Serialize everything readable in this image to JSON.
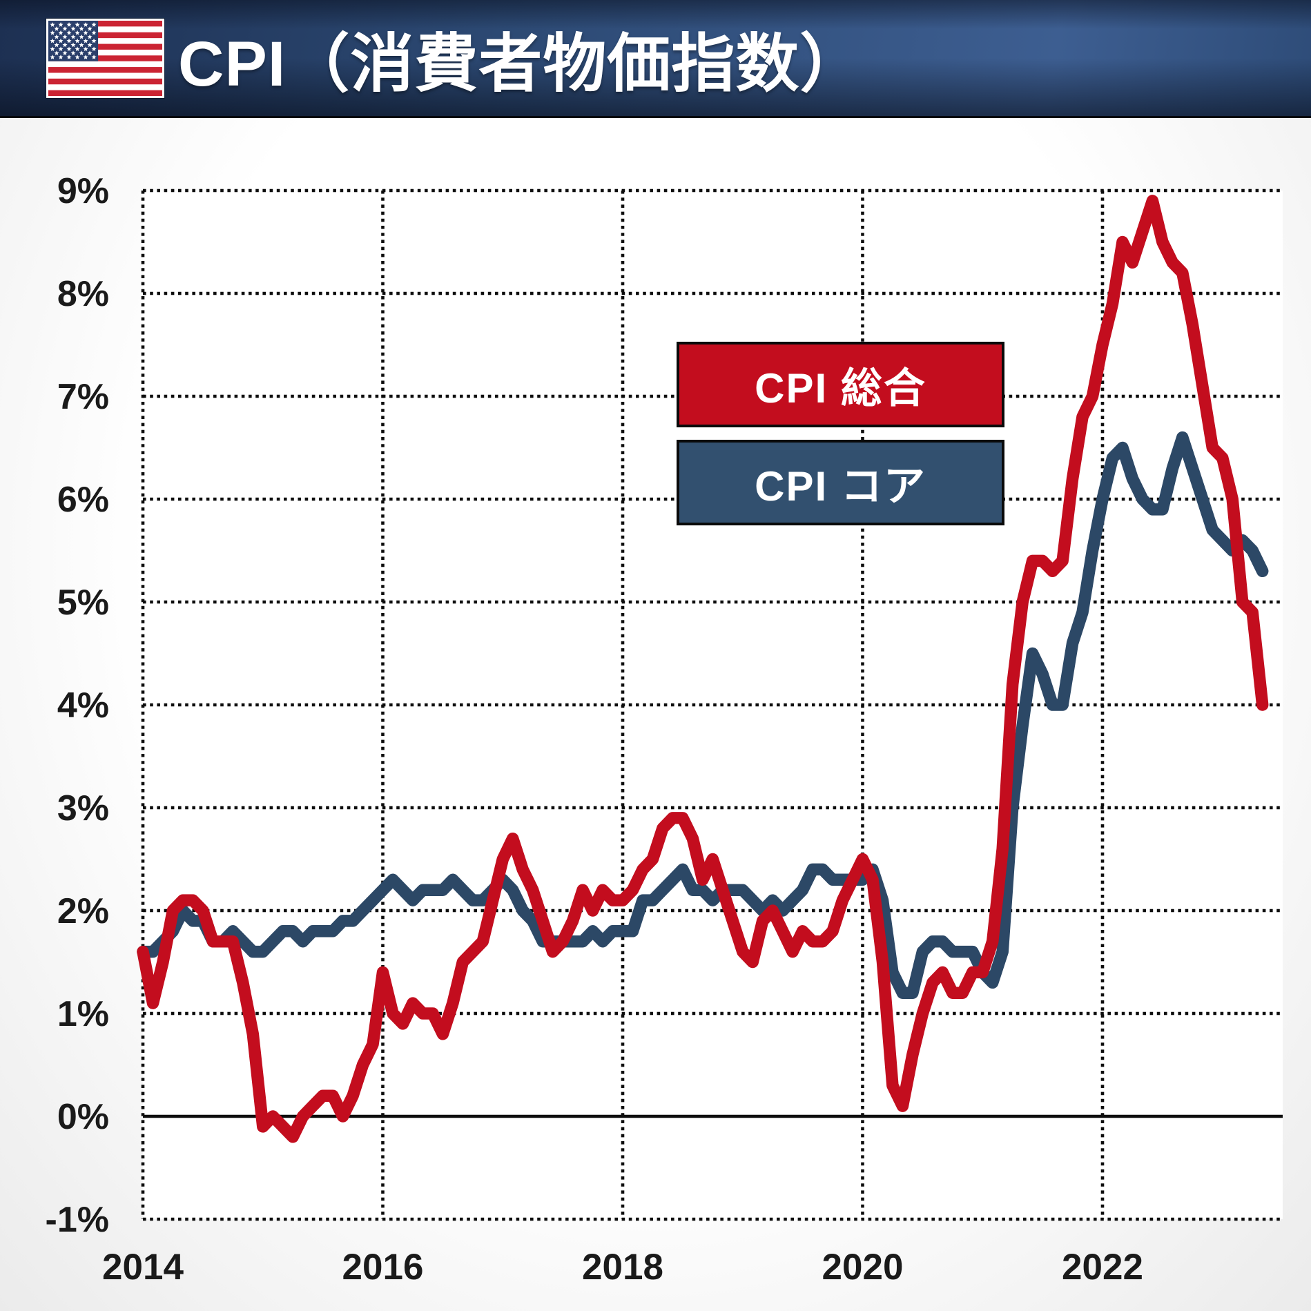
{
  "header": {
    "title": "CPI（消費者物価指数）"
  },
  "flag": {
    "name": "us-flag",
    "colors": {
      "red": "#cb2433",
      "navy": "#2b3f6b",
      "white": "#ffffff"
    }
  },
  "legend": {
    "items": [
      {
        "label": "CPI 総合",
        "color": "#c30d1e"
      },
      {
        "label": "CPI コア",
        "color": "#32506f"
      }
    ]
  },
  "colors": {
    "headline_red": "#c30d1e",
    "core_navy": "#2c4866",
    "header_navy": "#2e4c78",
    "grid_black": "#0d0d0d",
    "label_text": "#1a1a1a"
  },
  "chart_data": {
    "type": "line",
    "title": "CPI（消費者物価指数）",
    "x_start": "2014-01",
    "x_end": "2023-05",
    "frequency": "monthly",
    "x_tick_labels": [
      "2014",
      "2016",
      "2018",
      "2020",
      "2022"
    ],
    "y_tick_labels": [
      "9%",
      "8%",
      "7%",
      "6%",
      "5%",
      "4%",
      "3%",
      "2%",
      "1%",
      "0%",
      "-1%"
    ],
    "y_tick_values": [
      9,
      8,
      7,
      6,
      5,
      4,
      3,
      2,
      1,
      0,
      -1
    ],
    "ylim": [
      -1,
      9
    ],
    "xlabel": "",
    "ylabel": "",
    "grid": "dotted black gridlines; solid black zero axis; dotted plot border left/top/bottom",
    "legend_position": "upper-middle boxes",
    "series": [
      {
        "name": "CPI 総合",
        "color": "#c30d1e",
        "values": [
          1.6,
          1.1,
          1.5,
          2.0,
          2.1,
          2.1,
          2.0,
          1.7,
          1.7,
          1.7,
          1.3,
          0.8,
          -0.1,
          0.0,
          -0.1,
          -0.2,
          0.0,
          0.1,
          0.2,
          0.2,
          0.0,
          0.2,
          0.5,
          0.7,
          1.4,
          1.0,
          0.9,
          1.1,
          1.0,
          1.0,
          0.8,
          1.1,
          1.5,
          1.6,
          1.7,
          2.1,
          2.5,
          2.7,
          2.4,
          2.2,
          1.9,
          1.6,
          1.7,
          1.9,
          2.2,
          2.0,
          2.2,
          2.1,
          2.1,
          2.2,
          2.4,
          2.5,
          2.8,
          2.9,
          2.9,
          2.7,
          2.3,
          2.5,
          2.2,
          1.9,
          1.6,
          1.5,
          1.9,
          2.0,
          1.8,
          1.6,
          1.8,
          1.7,
          1.7,
          1.8,
          2.1,
          2.3,
          2.5,
          2.3,
          1.5,
          0.3,
          0.1,
          0.6,
          1.0,
          1.3,
          1.4,
          1.2,
          1.2,
          1.4,
          1.4,
          1.7,
          2.6,
          4.2,
          5.0,
          5.4,
          5.4,
          5.3,
          5.4,
          6.2,
          6.8,
          7.0,
          7.5,
          7.9,
          8.5,
          8.3,
          8.6,
          8.9,
          8.5,
          8.3,
          8.2,
          7.7,
          7.1,
          6.5,
          6.4,
          6.0,
          5.0,
          4.9,
          4.0
        ]
      },
      {
        "name": "CPI コア",
        "color": "#2c4866",
        "values": [
          1.6,
          1.6,
          1.7,
          1.8,
          2.0,
          1.9,
          1.9,
          1.7,
          1.7,
          1.8,
          1.7,
          1.6,
          1.6,
          1.7,
          1.8,
          1.8,
          1.7,
          1.8,
          1.8,
          1.8,
          1.9,
          1.9,
          2.0,
          2.1,
          2.2,
          2.3,
          2.2,
          2.1,
          2.2,
          2.2,
          2.2,
          2.3,
          2.2,
          2.1,
          2.1,
          2.2,
          2.3,
          2.2,
          2.0,
          1.9,
          1.7,
          1.7,
          1.7,
          1.7,
          1.7,
          1.8,
          1.7,
          1.8,
          1.8,
          1.8,
          2.1,
          2.1,
          2.2,
          2.3,
          2.4,
          2.2,
          2.2,
          2.1,
          2.2,
          2.2,
          2.2,
          2.1,
          2.0,
          2.1,
          2.0,
          2.1,
          2.2,
          2.4,
          2.4,
          2.3,
          2.3,
          2.3,
          2.3,
          2.4,
          2.1,
          1.4,
          1.2,
          1.2,
          1.6,
          1.7,
          1.7,
          1.6,
          1.6,
          1.6,
          1.4,
          1.3,
          1.6,
          3.0,
          3.8,
          4.5,
          4.3,
          4.0,
          4.0,
          4.6,
          4.9,
          5.5,
          6.0,
          6.4,
          6.5,
          6.2,
          6.0,
          5.9,
          5.9,
          6.3,
          6.6,
          6.3,
          6.0,
          5.7,
          5.6,
          5.5,
          5.6,
          5.5,
          5.3
        ]
      }
    ]
  }
}
